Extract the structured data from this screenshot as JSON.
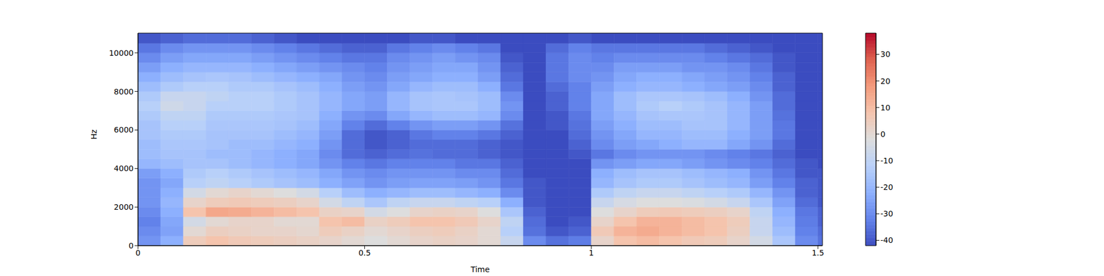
{
  "chart_data": {
    "type": "heatmap",
    "x_label": "Time",
    "y_label": "Hz",
    "xlim": [
      0,
      1.51
    ],
    "ylim": [
      0,
      11025
    ],
    "xticks": [
      0,
      0.5,
      1,
      1.5
    ],
    "yticks": [
      0,
      2000,
      4000,
      6000,
      8000,
      10000
    ],
    "x_edges": [
      0,
      0.05,
      0.1,
      0.15,
      0.2,
      0.25,
      0.3,
      0.35,
      0.4,
      0.45,
      0.5,
      0.55,
      0.6,
      0.65,
      0.7,
      0.75,
      0.8,
      0.85,
      0.9,
      0.95,
      1.0,
      1.05,
      1.1,
      1.15,
      1.2,
      1.25,
      1.3,
      1.35,
      1.4,
      1.45,
      1.5,
      1.51
    ],
    "y_edges": [
      0,
      500,
      1000,
      1500,
      2000,
      2500,
      3000,
      3500,
      4000,
      4500,
      5000,
      5500,
      6000,
      6500,
      7000,
      7500,
      8000,
      8500,
      9000,
      9500,
      10000,
      10500,
      11025
    ],
    "cells": [
      [
        -28,
        -22,
        5,
        8,
        6,
        5,
        4,
        3,
        2,
        0,
        -2,
        0,
        2,
        3,
        2,
        0,
        -8,
        -30,
        -35,
        -33,
        2,
        8,
        10,
        8,
        6,
        5,
        2,
        -5,
        -15,
        -30,
        -35
      ],
      [
        -30,
        -25,
        0,
        4,
        3,
        2,
        2,
        1,
        5,
        3,
        0,
        2,
        4,
        5,
        3,
        0,
        -12,
        -35,
        -40,
        -38,
        6,
        12,
        14,
        12,
        10,
        8,
        4,
        -8,
        -18,
        -32,
        -36
      ],
      [
        -32,
        -24,
        -5,
        0,
        2,
        2,
        0,
        0,
        8,
        10,
        3,
        5,
        8,
        8,
        6,
        2,
        -10,
        -36,
        -42,
        -40,
        2,
        8,
        12,
        12,
        10,
        8,
        5,
        -8,
        -20,
        -33,
        -38
      ],
      [
        -30,
        -22,
        8,
        15,
        14,
        12,
        10,
        8,
        3,
        2,
        -5,
        -2,
        2,
        3,
        2,
        -2,
        -15,
        -38,
        -42,
        -42,
        -2,
        2,
        5,
        6,
        5,
        4,
        2,
        -10,
        -22,
        -34,
        -38
      ],
      [
        -28,
        -20,
        2,
        5,
        6,
        5,
        4,
        2,
        -5,
        -10,
        -15,
        -10,
        -8,
        -8,
        -10,
        -12,
        -22,
        -40,
        -42,
        -42,
        -8,
        -4,
        -2,
        -2,
        -3,
        -5,
        -8,
        -15,
        -25,
        -36,
        -40
      ],
      [
        -28,
        -22,
        -5,
        0,
        2,
        0,
        -2,
        -5,
        -12,
        -18,
        -22,
        -20,
        -18,
        -18,
        -20,
        -22,
        -30,
        -40,
        -42,
        -42,
        -14,
        -10,
        -8,
        -8,
        -10,
        -12,
        -14,
        -20,
        -28,
        -38,
        -40
      ],
      [
        -28,
        -24,
        -12,
        -10,
        -12,
        -14,
        -16,
        -18,
        -22,
        -25,
        -28,
        -26,
        -25,
        -25,
        -26,
        -28,
        -34,
        -40,
        -42,
        -42,
        -20,
        -16,
        -14,
        -14,
        -16,
        -18,
        -20,
        -26,
        -32,
        -38,
        -40
      ],
      [
        -26,
        -22,
        -14,
        -12,
        -14,
        -16,
        -18,
        -20,
        -24,
        -28,
        -30,
        -28,
        -28,
        -28,
        -30,
        -30,
        -36,
        -42,
        -42,
        -42,
        -22,
        -18,
        -16,
        -16,
        -18,
        -20,
        -22,
        -28,
        -34,
        -40,
        -40
      ],
      [
        -20,
        -18,
        -16,
        -16,
        -18,
        -20,
        -22,
        -24,
        -28,
        -32,
        -34,
        -32,
        -32,
        -32,
        -34,
        -34,
        -38,
        -42,
        -42,
        -42,
        -28,
        -26,
        -24,
        -24,
        -26,
        -28,
        -30,
        -32,
        -36,
        -40,
        -42
      ],
      [
        -18,
        -16,
        -16,
        -18,
        -18,
        -20,
        -22,
        -24,
        -30,
        -36,
        -38,
        -36,
        -35,
        -36,
        -36,
        -38,
        -40,
        -42,
        -42,
        -40,
        -34,
        -30,
        -28,
        -28,
        -28,
        -30,
        -32,
        -34,
        -38,
        -42,
        -42
      ],
      [
        -18,
        -15,
        -15,
        -16,
        -18,
        -18,
        -20,
        -22,
        -28,
        -36,
        -40,
        -38,
        -36,
        -36,
        -36,
        -38,
        -40,
        -42,
        -42,
        -38,
        -30,
        -26,
        -24,
        -22,
        -20,
        -20,
        -24,
        -28,
        -36,
        -42,
        -42
      ],
      [
        -16,
        -14,
        -14,
        -16,
        -16,
        -16,
        -18,
        -20,
        -26,
        -36,
        -40,
        -38,
        -34,
        -32,
        -32,
        -34,
        -38,
        -42,
        -42,
        -36,
        -28,
        -24,
        -20,
        -20,
        -18,
        -18,
        -22,
        -26,
        -34,
        -42,
        -42
      ],
      [
        -16,
        -12,
        -12,
        -15,
        -15,
        -15,
        -16,
        -18,
        -24,
        -32,
        -36,
        -32,
        -28,
        -26,
        -26,
        -28,
        -35,
        -42,
        -40,
        -35,
        -26,
        -22,
        -18,
        -18,
        -16,
        -16,
        -20,
        -26,
        -34,
        -42,
        -42
      ],
      [
        -14,
        -10,
        -10,
        -14,
        -14,
        -14,
        -15,
        -16,
        -22,
        -28,
        -30,
        -24,
        -20,
        -18,
        -18,
        -20,
        -30,
        -42,
        -40,
        -34,
        -24,
        -20,
        -16,
        -15,
        -15,
        -16,
        -20,
        -26,
        -35,
        -42,
        -42
      ],
      [
        -12,
        -6,
        -8,
        -12,
        -12,
        -12,
        -14,
        -16,
        -20,
        -24,
        -26,
        -20,
        -16,
        -15,
        -15,
        -18,
        -28,
        -42,
        -38,
        -32,
        -24,
        -18,
        -14,
        -12,
        -14,
        -16,
        -20,
        -26,
        -36,
        -42,
        -42
      ],
      [
        -14,
        -8,
        -8,
        -10,
        -12,
        -12,
        -14,
        -16,
        -20,
        -24,
        -26,
        -20,
        -16,
        -15,
        -16,
        -18,
        -30,
        -42,
        -38,
        -32,
        -24,
        -18,
        -15,
        -15,
        -16,
        -18,
        -22,
        -28,
        -36,
        -42,
        -42
      ],
      [
        -18,
        -14,
        -12,
        -12,
        -14,
        -14,
        -16,
        -18,
        -22,
        -26,
        -28,
        -24,
        -20,
        -18,
        -18,
        -22,
        -34,
        -42,
        -36,
        -32,
        -26,
        -22,
        -20,
        -20,
        -22,
        -24,
        -26,
        -30,
        -38,
        -42,
        -42
      ],
      [
        -22,
        -18,
        -16,
        -15,
        -16,
        -18,
        -20,
        -22,
        -24,
        -28,
        -30,
        -26,
        -24,
        -22,
        -22,
        -26,
        -36,
        -42,
        -34,
        -30,
        -28,
        -24,
        -22,
        -22,
        -24,
        -26,
        -28,
        -32,
        -38,
        -42,
        -42
      ],
      [
        -26,
        -22,
        -20,
        -20,
        -20,
        -22,
        -24,
        -26,
        -28,
        -30,
        -32,
        -28,
        -26,
        -24,
        -24,
        -28,
        -38,
        -42,
        -34,
        -30,
        -30,
        -26,
        -26,
        -26,
        -28,
        -28,
        -30,
        -34,
        -40,
        -42,
        -42
      ],
      [
        -30,
        -26,
        -24,
        -24,
        -24,
        -26,
        -28,
        -30,
        -32,
        -34,
        -34,
        -30,
        -28,
        -26,
        -28,
        -30,
        -40,
        -42,
        -34,
        -30,
        -32,
        -30,
        -30,
        -30,
        -30,
        -32,
        -34,
        -36,
        -40,
        -42,
        -42
      ],
      [
        -34,
        -30,
        -28,
        -28,
        -28,
        -30,
        -32,
        -34,
        -36,
        -38,
        -38,
        -34,
        -32,
        -30,
        -32,
        -34,
        -42,
        -42,
        -36,
        -32,
        -34,
        -34,
        -34,
        -34,
        -34,
        -36,
        -38,
        -40,
        -42,
        -42,
        -42
      ],
      [
        -40,
        -38,
        -36,
        -36,
        -36,
        -38,
        -40,
        -42,
        -42,
        -42,
        -42,
        -42,
        -40,
        -40,
        -42,
        -42,
        -42,
        -42,
        -42,
        -40,
        -42,
        -42,
        -42,
        -42,
        -42,
        -42,
        -42,
        -42,
        -42,
        -42,
        -42
      ]
    ],
    "colorbar": {
      "range": [
        -42,
        38
      ],
      "ticks": [
        -40,
        -30,
        -20,
        -10,
        0,
        10,
        20,
        30
      ]
    }
  }
}
